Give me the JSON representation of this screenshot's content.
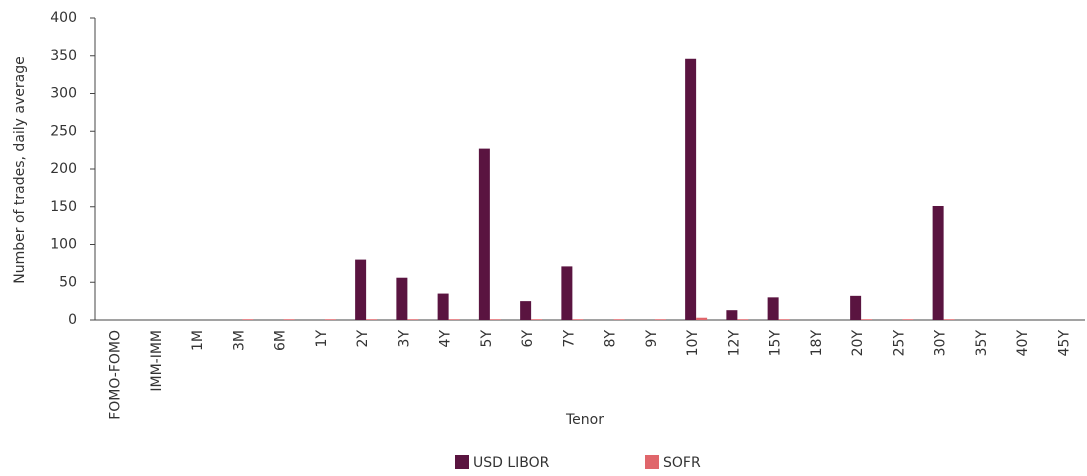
{
  "chart_data": {
    "type": "bar",
    "x_label": "Tenor",
    "y_label": "Number of trades, daily average",
    "categories": [
      "FOMO-FOMO",
      "IMM-IMM",
      "1M",
      "3M",
      "6M",
      "1Y",
      "2Y",
      "3Y",
      "4Y",
      "5Y",
      "6Y",
      "7Y",
      "8Y",
      "9Y",
      "10Y",
      "12Y",
      "15Y",
      "18Y",
      "20Y",
      "25Y",
      "30Y",
      "35Y",
      "40Y",
      "45Y"
    ],
    "series": [
      {
        "name": "USD LIBOR",
        "color": "#5a1440",
        "values": [
          0,
          0,
          0,
          0,
          0,
          0,
          80,
          56,
          35,
          227,
          25,
          71,
          0,
          0,
          346,
          13,
          30,
          0,
          32,
          0,
          151,
          0,
          0,
          0
        ]
      },
      {
        "name": "SOFR",
        "color": "#e0666b",
        "values": [
          0,
          0,
          0,
          1,
          1,
          1,
          1,
          1,
          1,
          1,
          1,
          1,
          1,
          1,
          3,
          1,
          1,
          0,
          1,
          1,
          1,
          0,
          0,
          0
        ]
      }
    ],
    "ylim": [
      0,
      400
    ],
    "yticks": [
      0,
      50,
      100,
      150,
      200,
      250,
      300,
      350,
      400
    ],
    "grid": false,
    "legend": "bottom"
  }
}
